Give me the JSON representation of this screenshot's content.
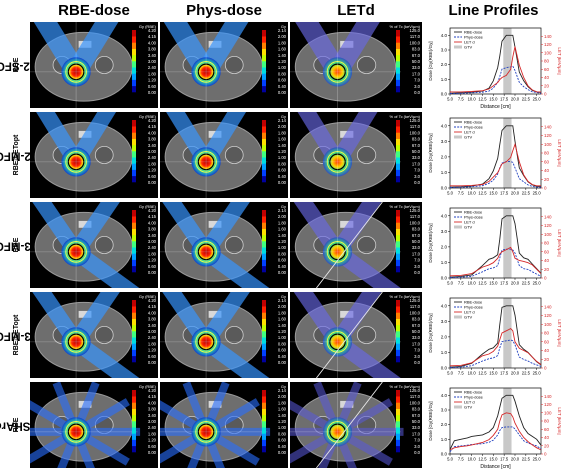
{
  "columns": [
    "RBE-dose",
    "Phys-dose",
    "LETd",
    "Line Profiles"
  ],
  "rows": [
    {
      "main": "2-SFO",
      "sub": "RBE",
      "beams": 2,
      "mode": "sfo",
      "ring": false
    },
    {
      "main": "2-MFO",
      "sub": "RBE-LETopt",
      "beams": 2,
      "mode": "mfo",
      "ring": false
    },
    {
      "main": "3-MFO",
      "sub": "RBE",
      "beams": 3,
      "mode": "mfo",
      "ring": false
    },
    {
      "main": "3-MFO",
      "sub": "RBE-LETopt",
      "beams": 3,
      "mode": "mfo2",
      "ring": false
    },
    {
      "main": "SHArc",
      "sub": "RBE",
      "beams": 0,
      "mode": "arc",
      "ring": true
    }
  ],
  "colorbars": {
    "rbe": {
      "title": "Gy (RBE)",
      "ticks": [
        "4.20",
        "4.15",
        "4.00",
        "3.80",
        "3.40",
        "3.00",
        "2.40",
        "1.80",
        "1.20",
        "0.60",
        "0.00"
      ]
    },
    "phys": {
      "title": "Gy",
      "ticks": [
        "2.14",
        "2.00",
        "1.80",
        "1.60",
        "1.40",
        "1.20",
        "1.00",
        "0.80",
        "0.60",
        "0.40",
        "0.00"
      ]
    },
    "let": {
      "title": "% of Tc (keV/μm)",
      "ticks": [
        "125.0",
        "117.0",
        "100.0",
        "83.0",
        "67.0",
        "50.0",
        "33.0",
        "17.0",
        "7.0",
        "3.0",
        "0.0"
      ]
    }
  },
  "colors": {
    "rbe_dose": "#222222",
    "phys_dose": "#1f3fbf",
    "letd": "#d62728",
    "gtv_band": "#c8c8c8"
  },
  "chart_data": [
    {
      "type": "line",
      "title": "Line Profiles",
      "xlabel": "Distance [cm]",
      "ylabel": "Dose [Gy(RBE)/Gy]",
      "y2label": "LET [keV/μm]",
      "xlim": [
        5.0,
        26.0
      ],
      "xticks": [
        "5.0",
        "7.5",
        "10.0",
        "12.5",
        "15.0",
        "17.5",
        "20.0",
        "22.5",
        "25.0"
      ],
      "ylim": [
        0,
        4.5
      ],
      "y2lim": [
        0,
        160
      ],
      "legend": [
        "RBE-dose",
        "Phys-dose",
        "LET d",
        "GTV"
      ],
      "series": [
        {
          "name": "RBE-dose",
          "x": [
            5,
            7.5,
            10,
            12.5,
            14,
            15,
            16,
            16.5,
            17,
            18,
            19,
            19.5,
            20,
            21,
            22,
            23,
            24,
            25,
            26
          ],
          "y": [
            0.05,
            0.08,
            0.12,
            0.2,
            0.4,
            0.9,
            1.8,
            2.6,
            3.6,
            4.0,
            4.0,
            4.0,
            3.2,
            1.5,
            0.9,
            0.5,
            0.25,
            0.15,
            0.1
          ]
        },
        {
          "name": "Phys-dose",
          "x": [
            5,
            7.5,
            10,
            12.5,
            14,
            15,
            16,
            16.5,
            17,
            18,
            19,
            19.5,
            20,
            21,
            22,
            23,
            24,
            25,
            26
          ],
          "y": [
            0.03,
            0.05,
            0.08,
            0.12,
            0.2,
            0.4,
            0.8,
            1.2,
            1.7,
            1.8,
            1.85,
            1.9,
            1.6,
            0.8,
            0.5,
            0.3,
            0.15,
            0.1,
            0.05
          ]
        },
        {
          "name": "LET d",
          "x": [
            5,
            7.5,
            10,
            12.5,
            14,
            15,
            16,
            16.5,
            17,
            18,
            19,
            19.5,
            20,
            21,
            22,
            23,
            24,
            25,
            26
          ],
          "y": [
            5,
            5,
            6,
            8,
            12,
            20,
            28,
            35,
            40,
            45,
            60,
            90,
            115,
            70,
            40,
            20,
            10,
            5,
            5
          ]
        }
      ],
      "gtv": [
        17.3,
        19.2
      ]
    },
    {
      "type": "line",
      "xlabel": "",
      "ylabel": "Dose [Gy(RBE)/Gy]",
      "y2label": "LET [keV/μm]",
      "xlim": [
        5.0,
        26.0
      ],
      "ylim": [
        0,
        4.5
      ],
      "y2lim": [
        0,
        160
      ],
      "legend": [
        "RBE-dose",
        "Phys-dose",
        "LET d",
        "GTV"
      ],
      "series": [
        {
          "name": "RBE-dose",
          "x": [
            5,
            7.5,
            10,
            12.5,
            14,
            15,
            16,
            16.5,
            17,
            18,
            19,
            19.5,
            20,
            21,
            22,
            23,
            24,
            25,
            26
          ],
          "y": [
            0.05,
            0.08,
            0.12,
            0.25,
            0.6,
            1.1,
            1.9,
            2.8,
            3.7,
            4.0,
            4.0,
            4.0,
            3.0,
            1.3,
            0.8,
            0.4,
            0.2,
            0.1,
            0.1
          ]
        },
        {
          "name": "Phys-dose",
          "x": [
            5,
            7.5,
            10,
            12.5,
            14,
            15,
            16,
            16.5,
            17,
            18,
            19,
            19.5,
            20,
            21,
            22,
            23,
            24,
            25,
            26
          ],
          "y": [
            0.03,
            0.05,
            0.08,
            0.15,
            0.3,
            0.5,
            0.9,
            1.3,
            1.6,
            1.7,
            1.7,
            1.65,
            1.3,
            0.6,
            0.4,
            0.2,
            0.1,
            0.05,
            0.05
          ]
        },
        {
          "name": "LET d",
          "x": [
            5,
            7.5,
            10,
            12.5,
            14,
            15,
            16,
            16.5,
            17,
            18,
            19,
            19.5,
            20,
            21,
            22,
            23,
            24,
            25,
            26
          ],
          "y": [
            5,
            5,
            6,
            8,
            15,
            25,
            35,
            45,
            55,
            60,
            70,
            85,
            100,
            60,
            30,
            15,
            8,
            5,
            5
          ]
        }
      ],
      "gtv": [
        17.3,
        19.2
      ]
    },
    {
      "type": "line",
      "xlabel": "",
      "ylabel": "Dose [Gy(RBE)/Gy]",
      "y2label": "LET [keV/μm]",
      "xlim": [
        5.0,
        26.0
      ],
      "ylim": [
        0,
        4.5
      ],
      "y2lim": [
        0,
        160
      ],
      "legend": [
        "RBE-dose",
        "Phys-dose",
        "LET d",
        "GTV"
      ],
      "series": [
        {
          "name": "RBE-dose",
          "x": [
            5,
            7.5,
            10,
            12.5,
            14,
            15,
            16,
            16.5,
            17,
            18,
            19,
            19.5,
            20,
            21,
            22,
            23,
            24,
            25,
            26
          ],
          "y": [
            0.05,
            0.1,
            0.2,
            0.8,
            1.2,
            1.3,
            1.5,
            2.5,
            3.8,
            4.0,
            4.0,
            4.0,
            3.5,
            1.6,
            1.3,
            1.2,
            0.9,
            0.6,
            0.3
          ]
        },
        {
          "name": "Phys-dose",
          "x": [
            5,
            7.5,
            10,
            12.5,
            14,
            15,
            16,
            16.5,
            17,
            18,
            19,
            19.5,
            20,
            21,
            22,
            23,
            24,
            25,
            26
          ],
          "y": [
            0.03,
            0.05,
            0.1,
            0.4,
            0.6,
            0.65,
            0.8,
            1.3,
            1.8,
            1.85,
            1.85,
            1.8,
            1.6,
            0.8,
            0.6,
            0.55,
            0.4,
            0.25,
            0.1
          ]
        },
        {
          "name": "LET d",
          "x": [
            5,
            7.5,
            10,
            12.5,
            14,
            15,
            16,
            16.5,
            17,
            18,
            19,
            19.5,
            20,
            21,
            22,
            23,
            24,
            25,
            26
          ],
          "y": [
            5,
            6,
            10,
            25,
            30,
            35,
            45,
            55,
            60,
            65,
            70,
            60,
            45,
            40,
            38,
            35,
            30,
            20,
            10
          ]
        }
      ],
      "gtv": [
        17.3,
        19.2
      ]
    },
    {
      "type": "line",
      "xlabel": "",
      "ylabel": "Dose [Gy(RBE)/Gy]",
      "y2label": "LET [keV/μm]",
      "xlim": [
        5.0,
        26.0
      ],
      "ylim": [
        0,
        4.5
      ],
      "y2lim": [
        0,
        160
      ],
      "legend": [
        "RBE-dose",
        "Phys-dose",
        "LET d",
        "GTV"
      ],
      "series": [
        {
          "name": "RBE-dose",
          "x": [
            5,
            7.5,
            10,
            12.5,
            14,
            15,
            16,
            16.5,
            17,
            18,
            19,
            19.5,
            20,
            21,
            22,
            23,
            24,
            25,
            26
          ],
          "y": [
            0.05,
            0.1,
            0.3,
            0.9,
            1.2,
            1.3,
            1.6,
            2.8,
            3.9,
            4.0,
            4.0,
            4.0,
            3.4,
            1.5,
            1.2,
            1.0,
            0.7,
            0.4,
            0.2
          ]
        },
        {
          "name": "Phys-dose",
          "x": [
            5,
            7.5,
            10,
            12.5,
            14,
            15,
            16,
            16.5,
            17,
            18,
            19,
            19.5,
            20,
            21,
            22,
            23,
            24,
            25,
            26
          ],
          "y": [
            0.03,
            0.05,
            0.15,
            0.45,
            0.6,
            0.65,
            0.8,
            1.3,
            1.7,
            1.75,
            1.8,
            1.75,
            1.5,
            0.7,
            0.55,
            0.45,
            0.3,
            0.2,
            0.1
          ]
        },
        {
          "name": "LET d",
          "x": [
            5,
            7.5,
            10,
            12.5,
            14,
            15,
            16,
            16.5,
            17,
            18,
            19,
            19.5,
            20,
            21,
            22,
            23,
            24,
            25,
            26
          ],
          "y": [
            5,
            6,
            12,
            28,
            32,
            38,
            50,
            65,
            80,
            85,
            90,
            85,
            60,
            45,
            40,
            35,
            25,
            15,
            8
          ]
        }
      ],
      "gtv": [
        17.3,
        19.2
      ]
    },
    {
      "type": "line",
      "xlabel": "Distance [cm]",
      "ylabel": "Dose [Gy(RBE)/Gy]",
      "y2label": "LET [keV/μm]",
      "xlim": [
        5.0,
        26.0
      ],
      "xticks": [
        "5.0",
        "7.5",
        "10.0",
        "12.5",
        "15.0",
        "17.5",
        "20.0",
        "22.5",
        "25.0"
      ],
      "ylim": [
        0,
        4.5
      ],
      "y2lim": [
        0,
        160
      ],
      "legend": [
        "RBE-dose",
        "Phys-dose",
        "LET d",
        "GTV"
      ],
      "series": [
        {
          "name": "RBE-dose",
          "x": [
            5,
            6,
            7.5,
            9,
            10,
            12.5,
            14,
            15,
            16,
            16.5,
            17,
            18,
            19,
            19.5,
            20,
            21,
            22,
            23,
            24,
            25,
            26
          ],
          "y": [
            0.3,
            0.9,
            1.0,
            1.1,
            1.2,
            1.3,
            1.5,
            1.8,
            2.6,
            3.2,
            3.8,
            4.0,
            4.0,
            4.0,
            3.6,
            2.6,
            1.8,
            1.4,
            1.2,
            1.0,
            0.6
          ]
        },
        {
          "name": "Phys-dose",
          "x": [
            5,
            6,
            7.5,
            9,
            10,
            12.5,
            14,
            15,
            16,
            16.5,
            17,
            18,
            19,
            19.5,
            20,
            21,
            22,
            23,
            24,
            25,
            26
          ],
          "y": [
            0.15,
            0.5,
            0.55,
            0.6,
            0.65,
            0.7,
            0.8,
            0.95,
            1.3,
            1.6,
            1.8,
            1.85,
            1.85,
            1.85,
            1.7,
            1.3,
            0.9,
            0.75,
            0.65,
            0.55,
            0.35
          ]
        },
        {
          "name": "LET d",
          "x": [
            5,
            6,
            7.5,
            9,
            10,
            12.5,
            14,
            15,
            16,
            16.5,
            17,
            18,
            19,
            19.5,
            20,
            21,
            22,
            23,
            24,
            25,
            26
          ],
          "y": [
            10,
            15,
            18,
            20,
            22,
            28,
            35,
            45,
            60,
            80,
            95,
            100,
            98,
            90,
            75,
            55,
            40,
            30,
            22,
            15,
            10
          ]
        }
      ],
      "gtv": [
        17.3,
        19.2
      ]
    }
  ]
}
